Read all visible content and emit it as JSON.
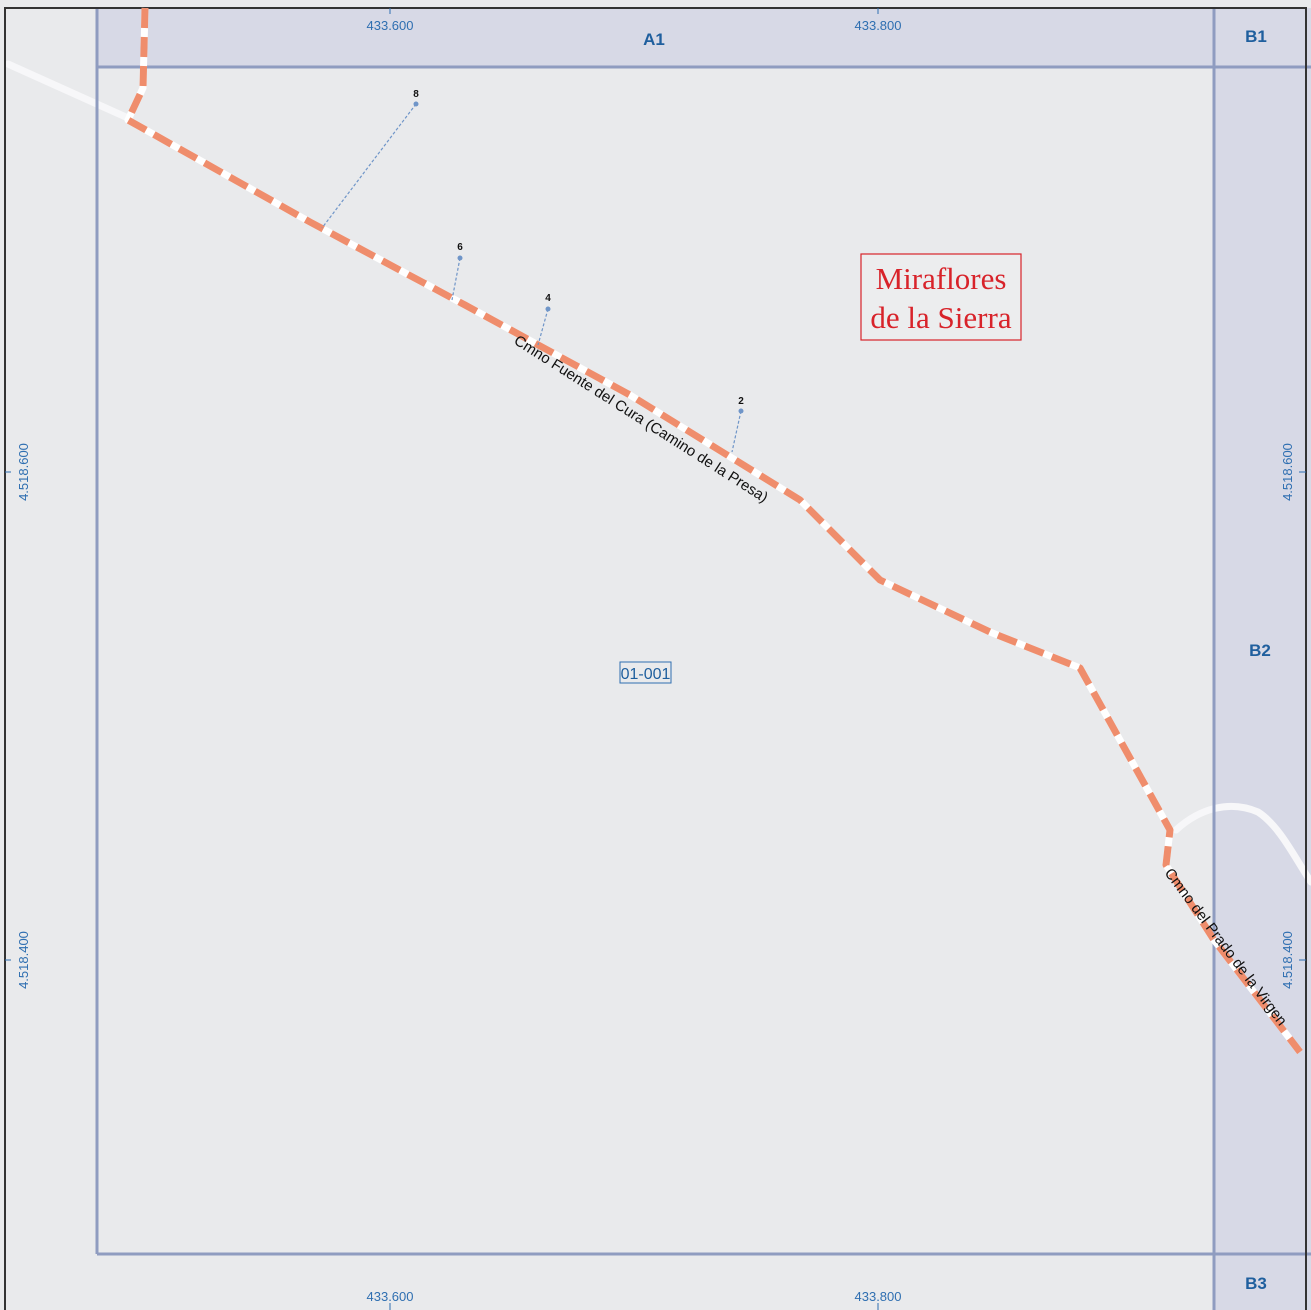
{
  "map": {
    "town_name_line1": "Miraflores",
    "town_name_line2": "de la Sierra",
    "parcel_id": "01-001",
    "colors": {
      "background": "#e9eaec",
      "neighbor_sheet": "#d7d9e6",
      "grid_line": "#8f9cc0",
      "road_dash": "#ef8d6c",
      "road_casing": "#ffffff",
      "label_blue": "#2f6fb1",
      "town_red": "#d8232a"
    }
  },
  "sheets": {
    "top": "A1",
    "right_top": "B1",
    "right_middle": "B2",
    "right_bottom": "B3"
  },
  "coords": {
    "x_left": "433.600",
    "x_right": "433.800",
    "y_upper": "4.518.600",
    "y_lower": "4.518.400"
  },
  "roads": {
    "main": "Cmno Fuente del Cura (Camino de la Presa)",
    "secondary": "Cmno del Prado de la Virgen"
  },
  "addresses": [
    "8",
    "6",
    "4",
    "2"
  ]
}
